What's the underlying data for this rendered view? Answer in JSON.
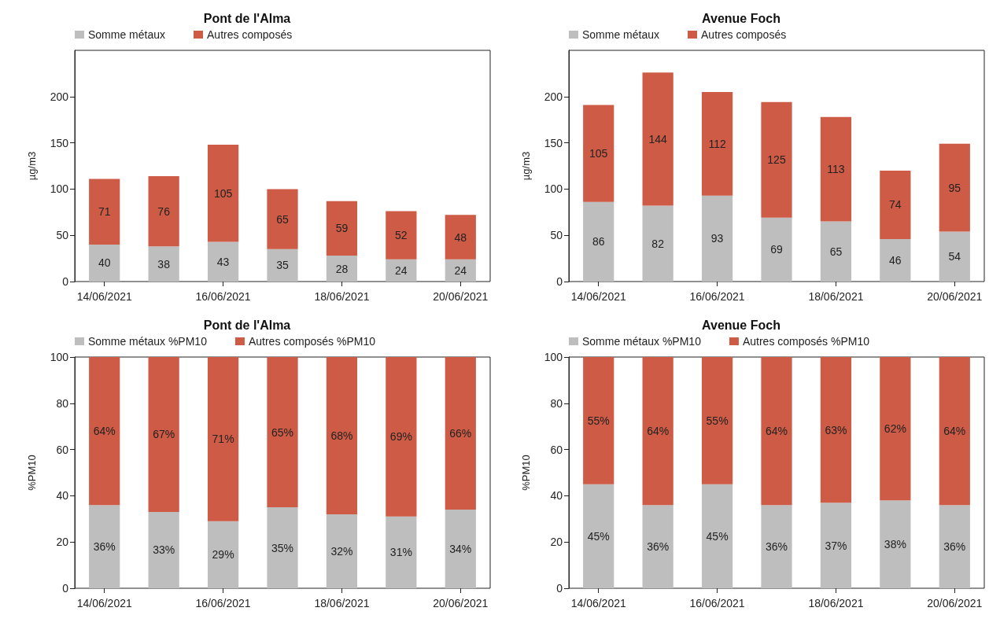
{
  "chart_data": [
    {
      "type": "bar",
      "title": "Pont de l'Alma",
      "ylabel": "µg/m3",
      "categories": [
        "14/06/2021",
        null,
        "16/06/2021",
        null,
        "18/06/2021",
        null,
        "20/06/2021"
      ],
      "stacked": true,
      "ylim": [
        0,
        250
      ],
      "yticks": [
        0,
        50,
        100,
        150,
        200
      ],
      "legend": "top left",
      "grid": false,
      "data_labels": true,
      "series": [
        {
          "name": "Somme métaux",
          "color": "#bebebe",
          "values": [
            40,
            38,
            43,
            35,
            28,
            24,
            24
          ]
        },
        {
          "name": "Autres composés",
          "color": "#cd5b45",
          "values": [
            71,
            76,
            105,
            65,
            59,
            52,
            48
          ]
        }
      ]
    },
    {
      "type": "bar",
      "title": "Avenue Foch",
      "ylabel": "µg/m3",
      "categories": [
        "14/06/2021",
        null,
        "16/06/2021",
        null,
        "18/06/2021",
        null,
        "20/06/2021"
      ],
      "stacked": true,
      "ylim": [
        0,
        250
      ],
      "yticks": [
        0,
        50,
        100,
        150,
        200
      ],
      "legend": "top left",
      "grid": false,
      "data_labels": true,
      "series": [
        {
          "name": "Somme métaux",
          "color": "#bebebe",
          "values": [
            86,
            82,
            93,
            69,
            65,
            46,
            54
          ]
        },
        {
          "name": "Autres composés",
          "color": "#cd5b45",
          "values": [
            105,
            144,
            112,
            125,
            113,
            74,
            95
          ]
        }
      ]
    },
    {
      "type": "bar",
      "title": "Pont de l'Alma",
      "ylabel": "%PM10",
      "categories": [
        "14/06/2021",
        null,
        "16/06/2021",
        null,
        "18/06/2021",
        null,
        "20/06/2021"
      ],
      "stacked": true,
      "ylim": [
        0,
        100
      ],
      "yticks": [
        0,
        20,
        40,
        60,
        80,
        100
      ],
      "legend": "top left",
      "grid": false,
      "series": [
        {
          "name": "Somme métaux %PM10",
          "color": "#bebebe",
          "values": [
            36,
            33,
            29,
            35,
            32,
            31,
            34
          ],
          "value_labels": [
            "36%",
            "33%",
            "29%",
            "35%",
            "32%",
            "31%",
            "34%"
          ]
        },
        {
          "name": "Autres composés %PM10",
          "color": "#cd5b45",
          "values": [
            64,
            67,
            71,
            65,
            68,
            69,
            66
          ],
          "value_labels": [
            "64%",
            "67%",
            "71%",
            "65%",
            "68%",
            "69%",
            "66%"
          ]
        }
      ]
    },
    {
      "type": "bar",
      "title": "Avenue Foch",
      "ylabel": "%PM10",
      "categories": [
        "14/06/2021",
        null,
        "16/06/2021",
        null,
        "18/06/2021",
        null,
        "20/06/2021"
      ],
      "stacked": true,
      "ylim": [
        0,
        100
      ],
      "yticks": [
        0,
        20,
        40,
        60,
        80,
        100
      ],
      "legend": "top left",
      "grid": false,
      "series": [
        {
          "name": "Somme métaux %PM10",
          "color": "#bebebe",
          "values": [
            45,
            36,
            45,
            36,
            37,
            38,
            36
          ],
          "value_labels": [
            "45%",
            "36%",
            "45%",
            "36%",
            "37%",
            "38%",
            "36%"
          ]
        },
        {
          "name": "Autres composés %PM10",
          "color": "#cd5b45",
          "values": [
            55,
            64,
            55,
            64,
            63,
            62,
            64
          ],
          "value_labels": [
            "55%",
            "64%",
            "55%",
            "64%",
            "63%",
            "62%",
            "64%"
          ]
        }
      ]
    }
  ]
}
